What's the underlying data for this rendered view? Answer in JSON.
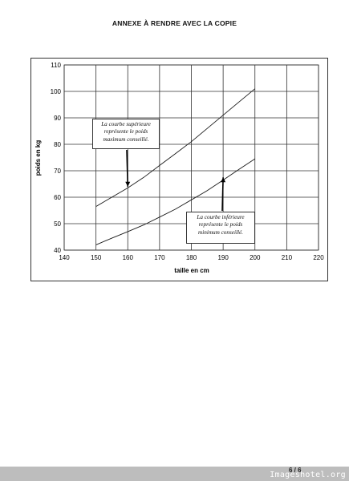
{
  "page": {
    "title": "ANNEXE À RENDRE AVEC LA COPIE",
    "page_number": "6 / 6",
    "watermark": "Imageshotel.org"
  },
  "chart_data": {
    "type": "line",
    "xlabel": "taille en cm",
    "ylabel": "poids en kg",
    "xlim": [
      140,
      220
    ],
    "ylim": [
      40,
      110
    ],
    "x_ticks": [
      140,
      150,
      160,
      170,
      180,
      190,
      200,
      210,
      220
    ],
    "y_ticks": [
      40,
      50,
      60,
      70,
      80,
      90,
      100,
      110
    ],
    "grid": true,
    "series": [
      {
        "x": [
          150,
          155,
          160,
          165,
          170,
          175,
          180,
          185,
          190,
          195,
          200
        ],
        "values": [
          56.5,
          60,
          63.5,
          67.5,
          72,
          76.5,
          81,
          86,
          91,
          96,
          101
        ]
      },
      {
        "x": [
          150,
          155,
          160,
          165,
          170,
          175,
          180,
          185,
          190,
          195,
          200
        ],
        "values": [
          42,
          44.5,
          47,
          49.5,
          52.5,
          55.5,
          59,
          62.5,
          66.5,
          70.5,
          74.5
        ]
      }
    ],
    "annotations": [
      {
        "lines": [
          "La courbe supérieure",
          "représente le poids",
          "maximum conseillé."
        ],
        "arrow_to": [
          160,
          64
        ]
      },
      {
        "lines": [
          "La courbe inférieure",
          "représente le poids",
          "minimum conseillé."
        ],
        "arrow_to": [
          190,
          67.5
        ]
      }
    ]
  }
}
